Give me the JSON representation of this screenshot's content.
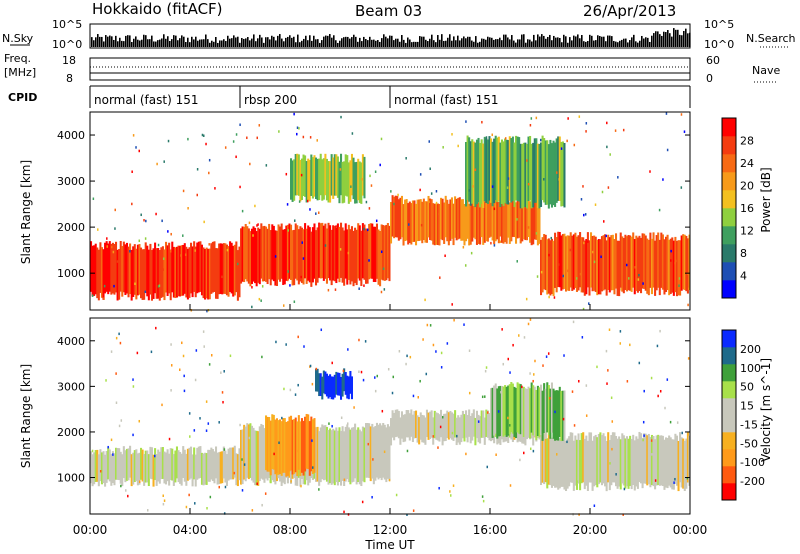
{
  "header": {
    "station": "Hokkaido (fitACF)",
    "beam": "Beam 03",
    "date": "26/Apr/2013"
  },
  "nsky_panel": {
    "left_label": "N.Sky",
    "left_ticks": [
      "10^5",
      "10^0"
    ],
    "right_label": "N.Search",
    "right_ticks": [
      "10^5",
      "10^0"
    ]
  },
  "freq_panel": {
    "left_label_line1": "Freq.",
    "left_label_line2": "[MHz]",
    "left_ticks": [
      "18",
      "8"
    ],
    "right_label": "Nave",
    "right_ticks": [
      "60",
      "0"
    ]
  },
  "cpid": {
    "label": "CPID",
    "segments": [
      {
        "label": "normal (fast) 151",
        "start_hour": 0,
        "end_hour": 6
      },
      {
        "label": "rbsp 200",
        "start_hour": 6,
        "end_hour": 12
      },
      {
        "label": "normal (fast) 151",
        "start_hour": 12,
        "end_hour": 24
      }
    ]
  },
  "colors": {
    "power_scale": [
      "#0000ff",
      "#1e4fb4",
      "#2a7a6a",
      "#3f9f5f",
      "#8fcf3f",
      "#f3c020",
      "#f79a1a",
      "#f76a14",
      "#f43c10",
      "#ff0000"
    ],
    "velocity_scale": [
      "#ff0000",
      "#ff5a10",
      "#ff9a1a",
      "#f7b020",
      "#c8c8bc",
      "#c8c8bc",
      "#a8e04a",
      "#3fa03a",
      "#1e6a8a",
      "#0a2aff"
    ]
  },
  "chart_data": [
    {
      "type": "heatmap",
      "name": "power-panel",
      "ylabel": "Slant Range [km]",
      "ylim": [
        200,
        4500
      ],
      "yticks": [
        1000,
        2000,
        3000,
        4000
      ],
      "xlim": [
        0,
        24
      ],
      "colorbar": {
        "label": "Power [dB]",
        "range": [
          0,
          32
        ],
        "ticks": [
          "28",
          "24",
          "20",
          "16",
          "12",
          "8",
          "4"
        ]
      },
      "bands": [
        {
          "t0": 0,
          "t1": 6,
          "r0": 500,
          "r1": 1600,
          "level": 0.9
        },
        {
          "t0": 6,
          "t1": 12,
          "r0": 800,
          "r1": 2000,
          "level": 0.85
        },
        {
          "t0": 12,
          "t1": 18,
          "r0": 1700,
          "r1": 2600,
          "level": 0.75
        },
        {
          "t0": 18,
          "t1": 24,
          "r0": 600,
          "r1": 1800,
          "level": 0.8
        },
        {
          "t0": 8,
          "t1": 11,
          "r0": 2600,
          "r1": 3500,
          "level": 0.45
        },
        {
          "t0": 15,
          "t1": 19,
          "r0": 2500,
          "r1": 3900,
          "level": 0.4
        }
      ]
    },
    {
      "type": "heatmap",
      "name": "velocity-panel",
      "ylabel": "Slant Range [km]",
      "xlabel": "Time UT",
      "ylim": [
        200,
        4500
      ],
      "yticks": [
        1000,
        2000,
        3000,
        4000
      ],
      "xlim": [
        0,
        24
      ],
      "xticks": [
        "00:00",
        "04:00",
        "08:00",
        "12:00",
        "16:00",
        "20:00",
        "00:00"
      ],
      "colorbar": {
        "label": "Velocity [m s^-1]",
        "ticks": [
          "200",
          "100",
          "50",
          "15",
          "-15",
          "-50",
          "-100",
          "-200"
        ]
      },
      "bands": [
        {
          "t0": 0,
          "t1": 6,
          "r0": 900,
          "r1": 1600,
          "level": 0.5
        },
        {
          "t0": 6,
          "t1": 12,
          "r0": 900,
          "r1": 2100,
          "level": 0.5
        },
        {
          "t0": 12,
          "t1": 18,
          "r0": 1800,
          "r1": 2400,
          "level": 0.5
        },
        {
          "t0": 18,
          "t1": 24,
          "r0": 800,
          "r1": 1900,
          "level": 0.5
        },
        {
          "t0": 9,
          "t1": 10.5,
          "r0": 2800,
          "r1": 3300,
          "level": 0.95
        },
        {
          "t0": 7,
          "t1": 9,
          "r0": 1100,
          "r1": 2300,
          "level": 0.25
        },
        {
          "t0": 16,
          "t1": 19,
          "r0": 1900,
          "r1": 3000,
          "level": 0.65
        }
      ]
    }
  ]
}
